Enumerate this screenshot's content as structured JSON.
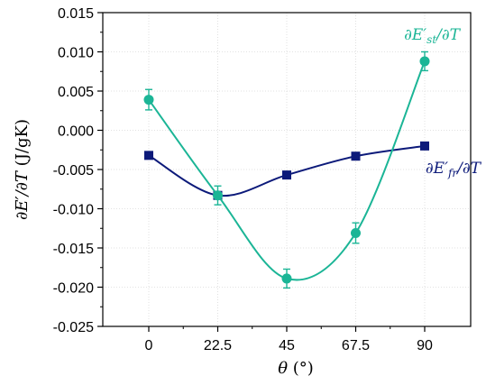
{
  "chart_data": {
    "type": "line",
    "x": [
      0,
      22.5,
      45,
      67.5,
      90
    ],
    "xticks": [
      "0",
      "22.5",
      "45",
      "67.5",
      "90"
    ],
    "xlim": [
      -15,
      105
    ],
    "yticks": [
      "0.015",
      "0.010",
      "0.005",
      "0.000",
      "-0.005",
      "-0.010",
      "-0.015",
      "-0.020",
      "-0.025"
    ],
    "ylim": [
      -0.025,
      0.015
    ],
    "ytick_values": [
      0.015,
      0.01,
      0.005,
      0.0,
      -0.005,
      -0.01,
      -0.015,
      -0.02,
      -0.025
    ],
    "xlabel": "θ (°)",
    "ylabel": "∂E′/∂T (J/gK)",
    "grid": true,
    "series": [
      {
        "name": "∂E′st/∂T",
        "color": "#1bb596",
        "marker": "circle",
        "values": [
          0.0039,
          -0.0083,
          -0.0189,
          -0.0131,
          0.0088
        ],
        "errors": [
          0.0013,
          0.0012,
          0.0012,
          0.0013,
          0.0012
        ]
      },
      {
        "name": "∂E′fr/∂T",
        "color": "#0c1a7a",
        "marker": "square",
        "values": [
          -0.0032,
          -0.0083,
          -0.0057,
          -0.0033,
          -0.002
        ],
        "errors": [
          0,
          0,
          0,
          0,
          0
        ]
      }
    ]
  }
}
